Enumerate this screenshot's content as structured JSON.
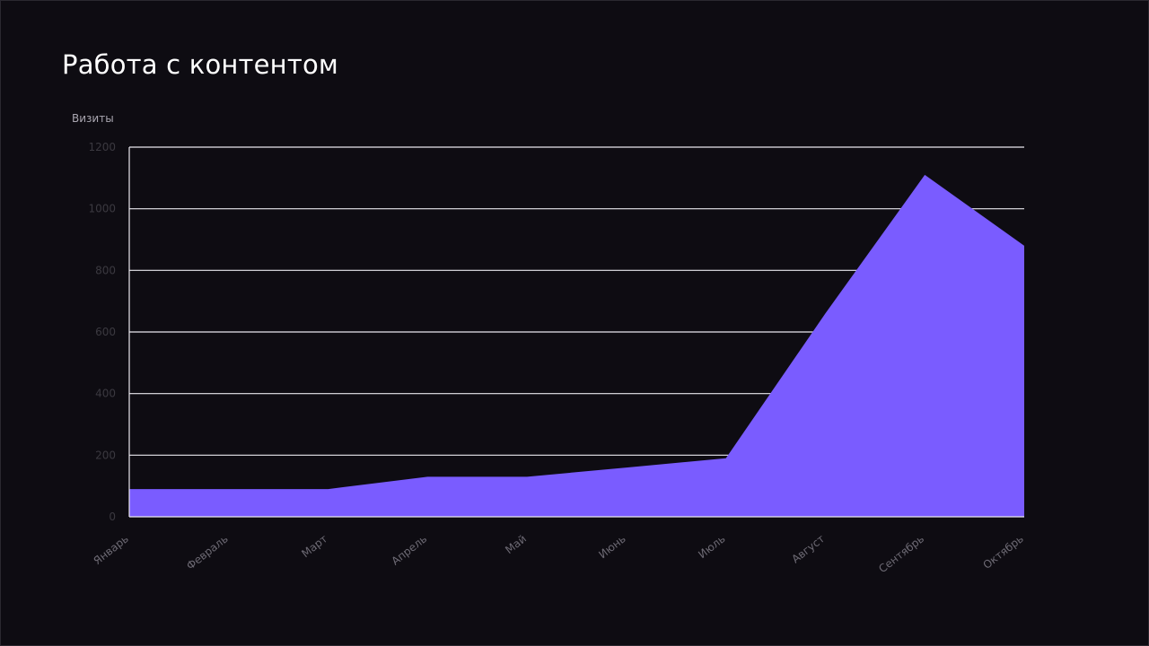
{
  "page": {
    "title": "Работа с контентом"
  },
  "chart_data": {
    "type": "area",
    "title": "Работа с контентом",
    "ylabel": "Визиты",
    "xlabel": "",
    "categories": [
      "Январь",
      "Февраль",
      "Март",
      "Апрель",
      "Май",
      "Июнь",
      "Июль",
      "Август",
      "Сентябрь",
      "Октябрь"
    ],
    "values": [
      90,
      90,
      90,
      130,
      130,
      160,
      190,
      660,
      1110,
      880
    ],
    "ylim": [
      0,
      1200
    ],
    "y_ticks": [
      0,
      200,
      400,
      600,
      800,
      1000,
      1200
    ],
    "y_tick_labels": [
      "0",
      "200",
      "400",
      "600",
      "800",
      "1000",
      "1200"
    ],
    "grid": true,
    "legend": "none",
    "colors": {
      "area": "#7a5cff",
      "grid": "#e9e7ee",
      "background": "#0e0c12"
    }
  }
}
